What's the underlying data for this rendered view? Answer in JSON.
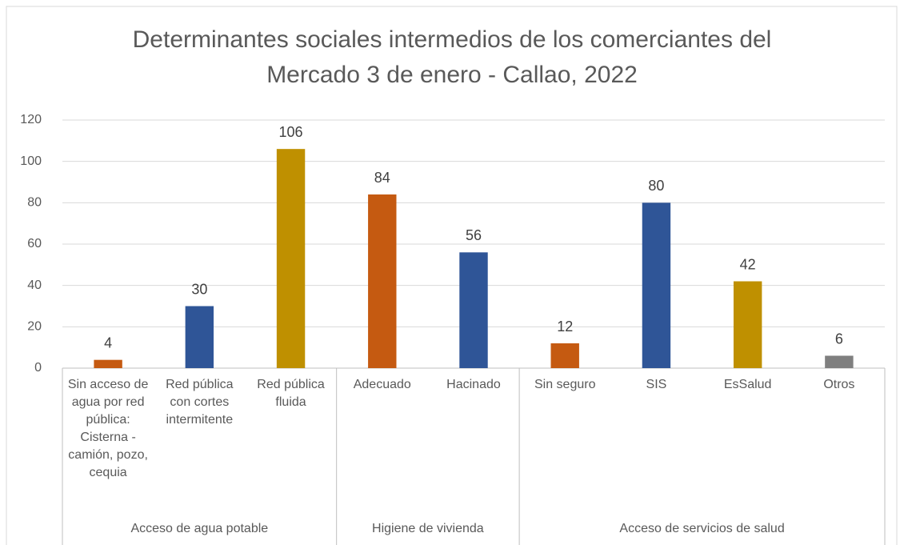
{
  "chart_data": {
    "type": "bar",
    "title": "Determinantes sociales intermedios de los comerciantes del Mercado 3 de enero - Callao, 2022",
    "groups": [
      {
        "name": "Acceso de agua potable",
        "categories": [
          "Sin acceso de agua por red pública: Cisterna - camión, pozo, cequia",
          "Red pública con cortes intermitente",
          "Red pública fluida"
        ],
        "values": [
          4,
          30,
          106
        ],
        "colors": [
          "#c55a11",
          "#2f5597",
          "#bf9000"
        ]
      },
      {
        "name": "Higiene de vivienda",
        "categories": [
          "Adecuado",
          "Hacinado"
        ],
        "values": [
          84,
          56
        ],
        "colors": [
          "#c55a11",
          "#2f5597"
        ]
      },
      {
        "name": "Acceso de servicios de salud",
        "categories": [
          "Sin seguro",
          "SIS",
          "EsSalud",
          "Otros"
        ],
        "values": [
          12,
          80,
          42,
          6
        ],
        "colors": [
          "#c55a11",
          "#2f5597",
          "#bf9000",
          "#7f7f7f"
        ]
      }
    ],
    "ylim": [
      0,
      120
    ],
    "yticks": [
      0,
      20,
      40,
      60,
      80,
      100,
      120
    ],
    "grid": true,
    "data_labels": true
  }
}
